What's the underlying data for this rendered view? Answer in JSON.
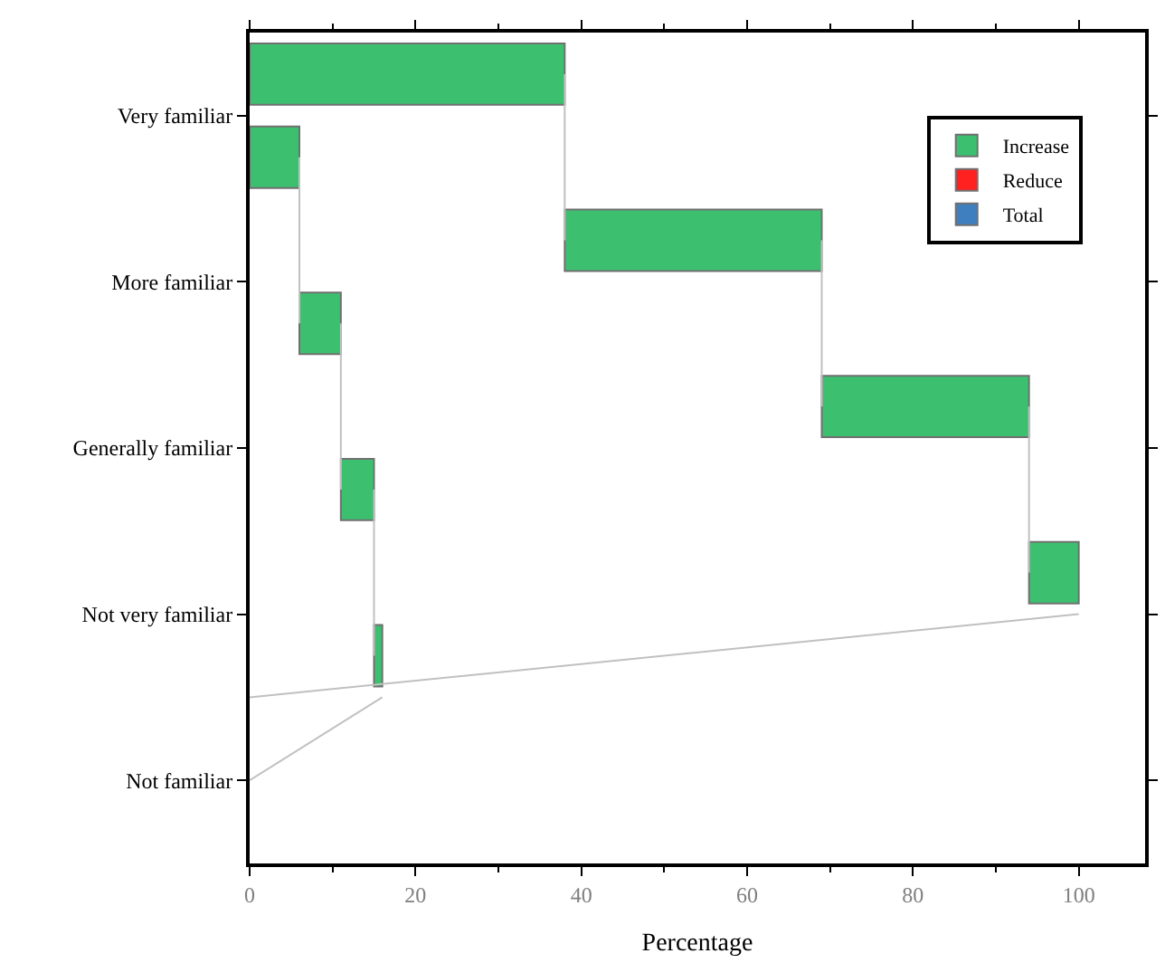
{
  "chart_data": {
    "type": "bar",
    "orientation": "horizontal",
    "xlabel": "Percentage",
    "categories": [
      null,
      "Very familiar",
      null,
      null,
      null,
      "More familiar",
      null,
      null,
      null,
      "Generally familiar",
      null,
      null,
      null,
      "Not very familiar",
      null,
      null,
      null,
      "Not familiar",
      null
    ],
    "series": [
      {
        "name": "Increase",
        "color": "#3cc070",
        "values": [
          38,
          null,
          6,
          null,
          31,
          null,
          5,
          null,
          25,
          null,
          4,
          null,
          6,
          null,
          1,
          null,
          null,
          null,
          null
        ],
        "base": [
          0,
          null,
          0,
          null,
          38,
          null,
          6,
          null,
          69,
          null,
          11,
          null,
          94,
          null,
          15,
          null,
          null,
          null,
          null
        ]
      },
      {
        "name": "Reduce",
        "color": "#ff2020",
        "values": [
          null,
          null,
          null,
          null,
          null,
          null,
          null,
          null,
          null,
          null,
          null,
          null,
          null,
          null,
          null,
          null,
          null,
          null,
          null
        ]
      },
      {
        "name": "Total",
        "color": "#3f7fbf",
        "values": [
          null,
          null,
          null,
          null,
          null,
          null,
          null,
          null,
          null,
          null,
          null,
          null,
          null,
          null,
          null,
          null,
          null,
          null,
          null
        ]
      },
      {
        "type": "line",
        "color": "#c0c0c0",
        "values": [
          38,
          null,
          null,
          null,
          38,
          null,
          null,
          null,
          null,
          null,
          null,
          null,
          null,
          null,
          null,
          null,
          null,
          null,
          null
        ]
      },
      {
        "type": "line",
        "color": "#c0c0c0",
        "values": [
          null,
          null,
          6,
          null,
          null,
          null,
          6,
          null,
          null,
          null,
          null,
          null,
          null,
          null,
          null,
          null,
          null,
          null,
          null
        ]
      },
      {
        "type": "line",
        "color": "#c0c0c0",
        "values": [
          null,
          null,
          null,
          null,
          69,
          null,
          null,
          null,
          69,
          null,
          null,
          null,
          null,
          null,
          null,
          null,
          null,
          null,
          null
        ]
      },
      {
        "type": "line",
        "color": "#c0c0c0",
        "values": [
          null,
          null,
          null,
          null,
          null,
          null,
          11,
          null,
          null,
          null,
          11,
          null,
          null,
          null,
          null,
          null,
          null,
          null,
          null
        ]
      },
      {
        "type": "line",
        "color": "#c0c0c0",
        "values": [
          null,
          null,
          null,
          null,
          null,
          null,
          null,
          null,
          94,
          null,
          null,
          null,
          94,
          null,
          null,
          null,
          null,
          null,
          null
        ]
      },
      {
        "type": "line",
        "color": "#c0c0c0",
        "values": [
          null,
          null,
          null,
          null,
          null,
          null,
          null,
          null,
          null,
          null,
          15,
          null,
          null,
          null,
          15,
          null,
          null,
          null,
          null
        ]
      },
      {
        "type": "line",
        "color": "#c0c0c0",
        "values": [
          null,
          null,
          null,
          null,
          null,
          null,
          null,
          null,
          null,
          null,
          null,
          null,
          null,
          100,
          null,
          0,
          null,
          null,
          null
        ]
      },
      {
        "type": "line",
        "color": "#c0c0c0",
        "values": [
          null,
          null,
          null,
          null,
          null,
          null,
          null,
          null,
          null,
          null,
          null,
          null,
          null,
          null,
          null,
          16,
          null,
          0,
          null
        ]
      }
    ],
    "xlim": [
      0,
      108
    ],
    "xticks": [
      0,
      20,
      40,
      60,
      80,
      100
    ],
    "legend": "top right"
  }
}
